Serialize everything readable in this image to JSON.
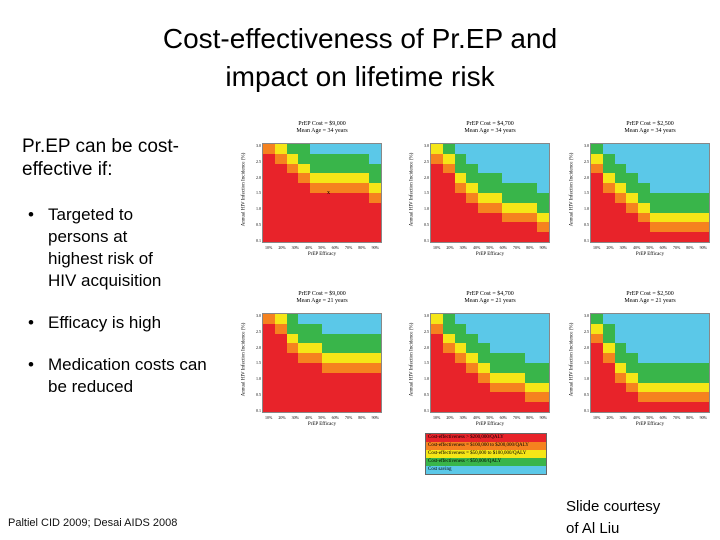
{
  "slide": {
    "title_line1": "Cost-effectiveness of Pr.EP and",
    "title_line2": "impact on lifetime risk",
    "intro_line1": "Pr.EP can be cost-",
    "intro_line2": "effective if:",
    "bullets": [
      {
        "line1": "Targeted to",
        "line2": "persons at",
        "line3": "highest risk of",
        "line4": "HIV acquisition"
      },
      {
        "line1": "Efficacy is high"
      },
      {
        "line1": "Medication costs can",
        "line2": "be reduced"
      }
    ],
    "citation": "Paltiel CID 2009; Desai AIDS 2008",
    "courtesy_line1": "Slide courtesy",
    "courtesy_line2": "of Al Liu"
  },
  "figure": {
    "ylabel": "Annual HIV Infection Incidence (%)",
    "xlabel": "PrEP Efficacy",
    "xticks": [
      "10%",
      "20%",
      "30%",
      "40%",
      "50%",
      "60%",
      "70%",
      "80%",
      "90%"
    ],
    "yticks": [
      "3.0",
      "2.5",
      "2.0",
      "1.5",
      "1.0",
      "0.5",
      "0.1"
    ],
    "marker": "x",
    "panels": [
      {
        "cost": "PrEP Cost = $9,000",
        "age": "Mean Age = 34 years",
        "levels": [
          9,
          8,
          7,
          6,
          5,
          5,
          5,
          5,
          5,
          4
        ]
      },
      {
        "cost": "PrEP Cost = $4,700",
        "age": "Mean Age = 34 years",
        "levels": [
          8,
          7,
          5,
          4,
          3,
          3,
          2,
          2,
          2,
          1
        ]
      },
      {
        "cost": "PrEP Cost = $2,500",
        "age": "Mean Age = 34 years",
        "levels": [
          7,
          5,
          4,
          3,
          2,
          1,
          1,
          1,
          1,
          1
        ]
      },
      {
        "cost": "PrEP Cost = $9,000",
        "age": "Mean Age = 21 years",
        "levels": [
          9,
          8,
          6,
          5,
          5,
          4,
          4,
          4,
          4,
          4
        ]
      },
      {
        "cost": "PrEP Cost = $4,700",
        "age": "Mean Age = 21 years",
        "levels": [
          8,
          6,
          5,
          4,
          3,
          2,
          2,
          2,
          1,
          1
        ]
      },
      {
        "cost": "PrEP Cost = $2,500",
        "age": "Mean Age = 21 years",
        "levels": [
          7,
          5,
          3,
          2,
          1,
          1,
          1,
          1,
          1,
          1
        ]
      }
    ],
    "legend": [
      {
        "label": "Cost-effectiveness > $200,000/QALY",
        "color": "#e8232a"
      },
      {
        "label": "Cost-effectiveness = $100,000 to $200,000/QALY",
        "color": "#f5821f"
      },
      {
        "label": "Cost-effectiveness = $50,000 to $100,000/QALY",
        "color": "#f5e617"
      },
      {
        "label": "Cost-effectiveness < $50,000/QALY",
        "color": "#39b54a"
      },
      {
        "label": "Cost saving",
        "color": "#5bc8e8"
      }
    ]
  }
}
